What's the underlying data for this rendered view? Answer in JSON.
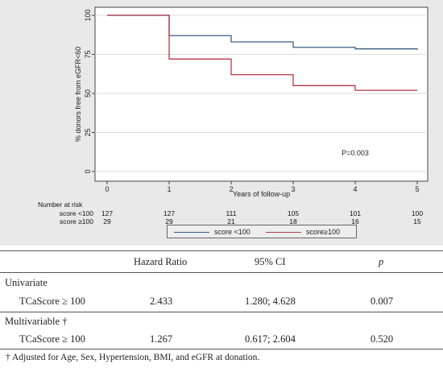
{
  "chart_data": {
    "type": "line",
    "step": true,
    "title": "",
    "xlabel": "Years of follow-up",
    "ylabel": "% donors free from eGFR<60",
    "xlim": [
      0,
      5
    ],
    "ylim": [
      0,
      100
    ],
    "x_ticks": [
      "0",
      "1",
      "2",
      "3",
      "4",
      "5"
    ],
    "y_ticks": [
      "0",
      "25",
      "50",
      "75",
      "100"
    ],
    "grid": true,
    "series": [
      {
        "name": "score <100",
        "color": "#3b5f87",
        "x": [
          0,
          1,
          2,
          3,
          4,
          5
        ],
        "y": [
          100,
          87,
          83,
          79.5,
          78.5,
          78
        ]
      },
      {
        "name": "score≥100",
        "color": "#b23a46",
        "x": [
          0,
          1,
          2,
          3,
          4,
          5
        ],
        "y": [
          100,
          72,
          62,
          55,
          52,
          52
        ]
      }
    ],
    "annotation": "P=0.003",
    "risk_table": {
      "title": "Number at risk",
      "rows": [
        {
          "label": "score <100",
          "values": [
            "127",
            "127",
            "111",
            "105",
            "101",
            "100"
          ]
        },
        {
          "label": "score ≥100",
          "values": [
            "29",
            "29",
            "21",
            "18",
            "16",
            "15"
          ]
        }
      ]
    },
    "legend": {
      "placement": "bottom",
      "entries": [
        "score <100",
        "score≥100"
      ]
    }
  },
  "table": {
    "headers": [
      "",
      "Hazard Ratio",
      "95% CI",
      "p"
    ],
    "rows": [
      {
        "label": "Univariate",
        "cells": []
      },
      {
        "label": "TCaScore ≥ 100",
        "cells": [
          "2.433",
          "1.280; 4.628",
          "0.007"
        ]
      },
      {
        "label": "Multivariable †",
        "cells": []
      },
      {
        "label": "TCaScore ≥ 100",
        "cells": [
          "1.267",
          "0.617; 2.604",
          "0.520"
        ]
      }
    ],
    "footnote": "† Adjusted for Age, Sex, Hypertension, BMI, and eGFR at donation."
  }
}
